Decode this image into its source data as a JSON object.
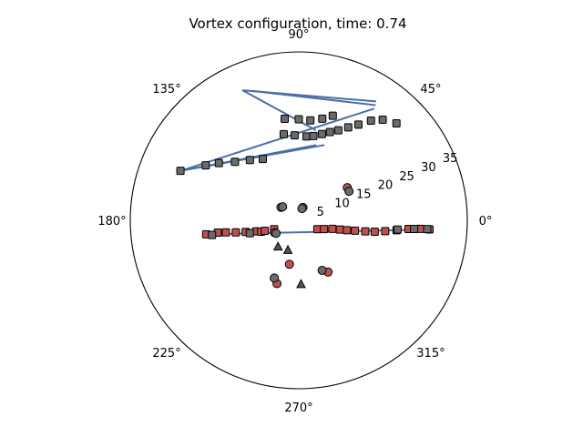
{
  "chart_data": {
    "type": "scatter",
    "projection": "polar",
    "title": "Vortex configuration, time: 0.74",
    "angle_unit": "degrees",
    "r_max": 36,
    "grid": false,
    "angular_ticks": [
      "0°",
      "45°",
      "90°",
      "135°",
      "180°",
      "225°",
      "270°",
      "315°"
    ],
    "radial_ticks": [
      {
        "value": 5,
        "label": "5"
      },
      {
        "value": 10,
        "label": "10"
      },
      {
        "value": 15,
        "label": "15"
      },
      {
        "value": 20,
        "label": "20"
      },
      {
        "value": 25,
        "label": "25"
      },
      {
        "value": 30,
        "label": "30"
      },
      {
        "value": 35,
        "label": "35"
      }
    ],
    "colors": {
      "grey": "#6b6b6b",
      "red": "#c0504d",
      "line": "#4a6fa5",
      "triangle": "#555555",
      "edge": "#000000"
    },
    "line_connections": [
      {
        "from": [
          113.4,
          30.3
        ],
        "to": [
          57.0,
          30.3
        ]
      },
      {
        "from": [
          113.4,
          30.3
        ],
        "to": [
          79.3,
          19.6
        ]
      },
      {
        "from": [
          109.8,
          29.4
        ],
        "to": [
          56.3,
          29.6
        ]
      },
      {
        "from": [
          157.3,
          27.4
        ],
        "to": [
          56.0,
          28.8
        ]
      },
      {
        "from": [
          157.3,
          27.4
        ],
        "to": [
          71.2,
          17.0
        ]
      },
      {
        "from": [
          157.3,
          27.4
        ],
        "to": [
          76.9,
          16.5
        ]
      },
      {
        "from": [
          -171.4,
          20.0
        ],
        "to": [
          -4.0,
          28.0
        ]
      }
    ],
    "series": [
      {
        "marker": "square",
        "color": "grey",
        "points": [
          [
            157.3,
            27.4
          ],
          [
            149.4,
            23.1
          ],
          [
            144.4,
            21.0
          ],
          [
            137.5,
            18.5
          ],
          [
            129.0,
            16.6
          ],
          [
            120.4,
            15.2
          ],
          [
            99.9,
            18.7
          ],
          [
            92.8,
            18.2
          ],
          [
            84.7,
            18.0
          ],
          [
            80.2,
            18.3
          ],
          [
            75.0,
            19.1
          ],
          [
            70.6,
            20.0
          ],
          [
            66.3,
            21.0
          ],
          [
            62.0,
            22.5
          ],
          [
            58.1,
            24.1
          ],
          [
            54.1,
            26.3
          ],
          [
            50.2,
            28.0
          ],
          [
            44.8,
            29.4
          ],
          [
            97.9,
            21.9
          ],
          [
            90.0,
            21.6
          ],
          [
            83.4,
            21.5
          ],
          [
            77.0,
            22.3
          ],
          [
            72.0,
            23.5
          ]
        ]
      },
      {
        "marker": "square",
        "color": "red",
        "points": [
          [
            -171.4,
            20.0
          ],
          [
            -171.4,
            17.5
          ],
          [
            -170.6,
            15.8
          ],
          [
            -169.2,
            13.7
          ],
          [
            -167.7,
            11.6
          ],
          [
            -165.5,
            9.4
          ],
          [
            -163.2,
            8.4
          ],
          [
            -162.8,
            7.6
          ],
          [
            -160.2,
            5.6
          ],
          [
            -25.4,
            4.4
          ],
          [
            -19.1,
            5.7
          ],
          [
            -14.2,
            7.4
          ],
          [
            -12.6,
            9.0
          ],
          [
            -11.6,
            10.5
          ],
          [
            -10.5,
            12.2
          ],
          [
            -9.4,
            14.4
          ],
          [
            -8.5,
            16.4
          ],
          [
            -7.1,
            18.6
          ],
          [
            -5.8,
            21.0
          ],
          [
            -4.5,
            23.5
          ],
          [
            -4.0,
            26.0
          ],
          [
            -4.0,
            28.0
          ]
        ]
      },
      {
        "marker": "square",
        "color": "grey",
        "points": [
          [
            -170.4,
            18.8
          ],
          [
            -165.3,
            10.8
          ],
          [
            -5.3,
            21.2
          ],
          [
            -4.3,
            24.7
          ],
          [
            -3.9,
            27.5
          ]
        ]
      },
      {
        "marker": "circle",
        "color": "red",
        "points": [
          [
            144.0,
            4.7
          ],
          [
            72.0,
            2.9
          ],
          [
            34.0,
            12.5
          ],
          [
            -153.0,
            5.8
          ],
          [
            -109.0,
            14.3
          ],
          [
            -60.5,
            12.7
          ],
          [
            -102.0,
            9.6
          ]
        ]
      },
      {
        "marker": "circle",
        "color": "grey",
        "points": [
          [
            140.0,
            4.5
          ],
          [
            75.0,
            2.6
          ],
          [
            30.0,
            12.4
          ],
          [
            -150.0,
            5.6
          ],
          [
            -113.0,
            13.4
          ],
          [
            -65.0,
            11.8
          ]
        ]
      },
      {
        "marker": "triangle",
        "color": "triangle",
        "points": [
          [
            -128.0,
            7.2
          ],
          [
            -110.0,
            6.8
          ],
          [
            -88.0,
            13.7
          ]
        ]
      }
    ]
  }
}
